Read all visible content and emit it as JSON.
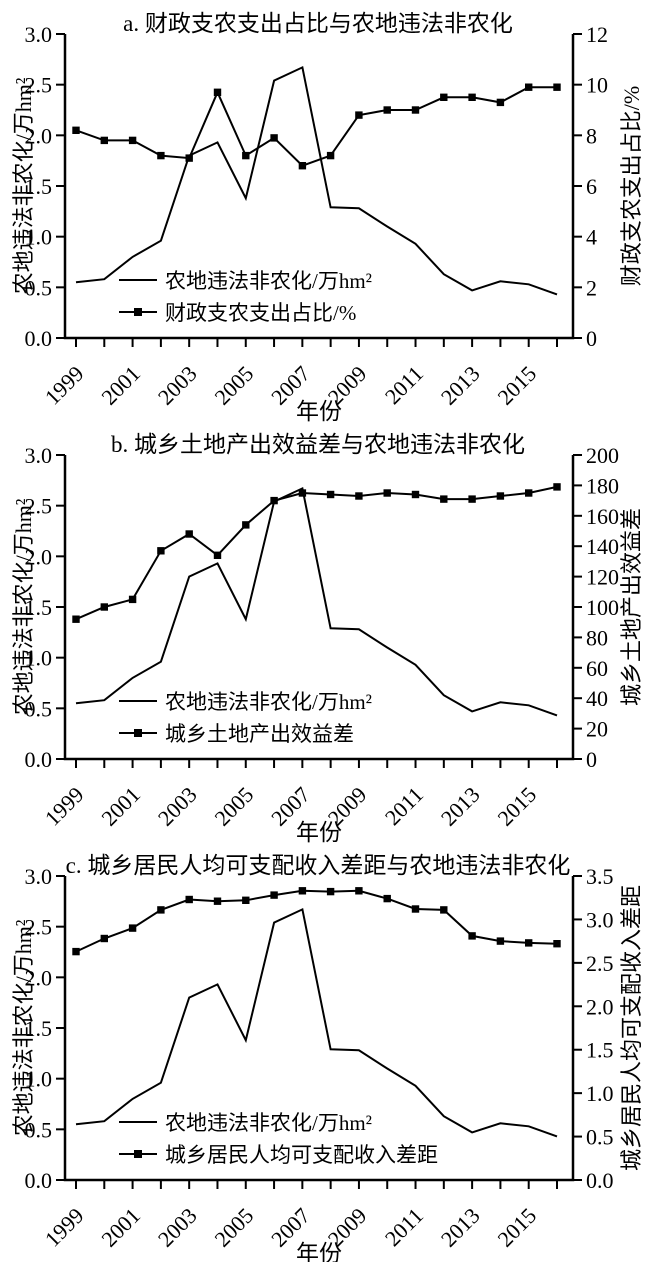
{
  "figure": {
    "background": "#ffffff",
    "line_color": "#000000",
    "text_color": "#000000"
  },
  "chart_data": [
    {
      "id": "a",
      "type": "line",
      "title": "a. 财政支农支出占比与农地违法非农化",
      "xlabel": "年份",
      "ylabel_left": "农地违法非农化/万hm²",
      "ylabel_right": "财政支农支出占比/%",
      "x": [
        1999,
        2000,
        2001,
        2002,
        2003,
        2004,
        2005,
        2006,
        2007,
        2008,
        2009,
        2010,
        2011,
        2012,
        2013,
        2014,
        2015,
        2016
      ],
      "x_tick_labels": [
        "1999",
        "2001",
        "2003",
        "2005",
        "2007",
        "2009",
        "2011",
        "2013",
        "2015"
      ],
      "ylim_left": [
        0,
        3
      ],
      "left_ticks": [
        "0.0",
        "0.5",
        "1.0",
        "1.5",
        "2.0",
        "2.5",
        "3.0"
      ],
      "ylim_right": [
        0,
        12
      ],
      "right_ticks": [
        "0",
        "2",
        "4",
        "6",
        "8",
        "10",
        "12"
      ],
      "grid": false,
      "legend_position": "inside-lower-left",
      "series": [
        {
          "name": "农地违法非农化/万hm²",
          "axis": "left",
          "marker": "none",
          "values": [
            0.55,
            0.58,
            0.8,
            0.96,
            1.8,
            1.93,
            1.38,
            2.54,
            2.67,
            1.29,
            1.28,
            1.1,
            0.93,
            0.63,
            0.47,
            0.56,
            0.53,
            0.43
          ]
        },
        {
          "name": "财政支农支出占比/%",
          "axis": "right",
          "marker": "square",
          "values": [
            8.2,
            7.8,
            7.8,
            7.2,
            7.1,
            9.7,
            7.2,
            7.9,
            6.8,
            7.2,
            8.8,
            9.0,
            9.0,
            9.5,
            9.5,
            9.3,
            9.9,
            9.9
          ]
        }
      ]
    },
    {
      "id": "b",
      "type": "line",
      "title": "b. 城乡土地产出效益差与农地违法非农化",
      "xlabel": "年份",
      "ylabel_left": "农地违法非农化/万hm²",
      "ylabel_right": "城乡土地产出效益差",
      "x": [
        1999,
        2000,
        2001,
        2002,
        2003,
        2004,
        2005,
        2006,
        2007,
        2008,
        2009,
        2010,
        2011,
        2012,
        2013,
        2014,
        2015,
        2016
      ],
      "x_tick_labels": [
        "1999",
        "2001",
        "2003",
        "2005",
        "2007",
        "2009",
        "2011",
        "2013",
        "2015"
      ],
      "ylim_left": [
        0,
        3
      ],
      "left_ticks": [
        "0.0",
        "0.5",
        "1.0",
        "1.5",
        "2.0",
        "2.5",
        "3.0"
      ],
      "ylim_right": [
        0,
        200
      ],
      "right_ticks": [
        "0",
        "20",
        "40",
        "60",
        "80",
        "100",
        "120",
        "140",
        "160",
        "180",
        "200"
      ],
      "grid": false,
      "legend_position": "inside-lower-left",
      "series": [
        {
          "name": "农地违法非农化/万hm²",
          "axis": "left",
          "marker": "none",
          "values": [
            0.55,
            0.58,
            0.8,
            0.96,
            1.8,
            1.93,
            1.38,
            2.54,
            2.67,
            1.29,
            1.28,
            1.1,
            0.93,
            0.63,
            0.47,
            0.56,
            0.53,
            0.43
          ]
        },
        {
          "name": "城乡土地产出效益差",
          "axis": "right",
          "marker": "square",
          "values": [
            92,
            100,
            105,
            137,
            148,
            134,
            154,
            170,
            175,
            174,
            173,
            175,
            174,
            171,
            171,
            173,
            175,
            179
          ]
        }
      ]
    },
    {
      "id": "c",
      "type": "line",
      "title": "c. 城乡居民人均可支配收入差距与农地违法非农化",
      "xlabel": "年份",
      "ylabel_left": "农地违法非农化/万hm²",
      "ylabel_right": "城乡居民人均可支配收入差距",
      "x": [
        1999,
        2000,
        2001,
        2002,
        2003,
        2004,
        2005,
        2006,
        2007,
        2008,
        2009,
        2010,
        2011,
        2012,
        2013,
        2014,
        2015,
        2016
      ],
      "x_tick_labels": [
        "1999",
        "2001",
        "2003",
        "2005",
        "2007",
        "2009",
        "2011",
        "2013",
        "2015"
      ],
      "ylim_left": [
        0,
        3
      ],
      "left_ticks": [
        "0.0",
        "0.5",
        "1.0",
        "1.5",
        "2.0",
        "2.5",
        "3.0"
      ],
      "ylim_right": [
        0,
        3.5
      ],
      "right_ticks": [
        "0.0",
        "0.5",
        "1.0",
        "1.5",
        "2.0",
        "2.5",
        "3.0",
        "3.5"
      ],
      "grid": false,
      "legend_position": "inside-lower-left",
      "series": [
        {
          "name": "农地违法非农化/万hm²",
          "axis": "left",
          "marker": "none",
          "values": [
            0.55,
            0.58,
            0.8,
            0.96,
            1.8,
            1.93,
            1.38,
            2.54,
            2.67,
            1.29,
            1.28,
            1.1,
            0.93,
            0.63,
            0.47,
            0.56,
            0.53,
            0.43
          ]
        },
        {
          "name": "城乡居民人均可支配收入差距",
          "axis": "right",
          "marker": "square",
          "values": [
            2.63,
            2.78,
            2.9,
            3.11,
            3.23,
            3.21,
            3.22,
            3.28,
            3.33,
            3.32,
            3.33,
            3.24,
            3.12,
            3.11,
            2.81,
            2.75,
            2.73,
            2.72
          ]
        }
      ]
    }
  ]
}
